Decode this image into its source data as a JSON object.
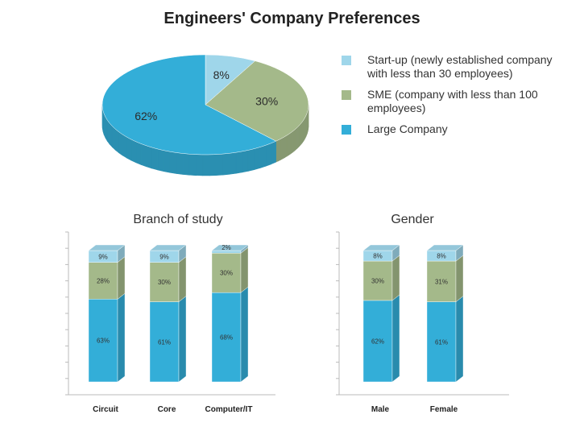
{
  "title": "Engineers' Company Preferences",
  "colors": {
    "startup": "#9fd6ea",
    "sme": "#a4b98a",
    "large": "#33aed8"
  },
  "legend": [
    {
      "key": "startup",
      "label": "Start-up (newly established company with less than 30 employees)"
    },
    {
      "key": "sme",
      "label": "SME (company with less than 100 employees)"
    },
    {
      "key": "large",
      "label": "Large Company"
    }
  ],
  "chart_data": [
    {
      "type": "pie",
      "title": "",
      "slices": [
        {
          "key": "startup",
          "value": 8,
          "label": "8%"
        },
        {
          "key": "sme",
          "value": 30,
          "label": "30%"
        },
        {
          "key": "large",
          "value": 62,
          "label": "62%"
        }
      ]
    },
    {
      "type": "bar",
      "stacked": true,
      "title": "Branch of study",
      "categories": [
        "Circuit",
        "Core",
        "Computer/IT"
      ],
      "series": [
        {
          "key": "large",
          "values": [
            63,
            61,
            68
          ],
          "labels": [
            "63%",
            "61%",
            "68%"
          ]
        },
        {
          "key": "sme",
          "values": [
            28,
            30,
            30
          ],
          "labels": [
            "28%",
            "30%",
            "30%"
          ]
        },
        {
          "key": "startup",
          "values": [
            9,
            9,
            2
          ],
          "labels": [
            "9%",
            "9%",
            "2%"
          ]
        }
      ],
      "ylim": [
        0,
        100
      ]
    },
    {
      "type": "bar",
      "stacked": true,
      "title": "Gender",
      "categories": [
        "Male",
        "Female"
      ],
      "series": [
        {
          "key": "large",
          "values": [
            62,
            61
          ],
          "labels": [
            "62%",
            "61%"
          ]
        },
        {
          "key": "sme",
          "values": [
            30,
            31
          ],
          "labels": [
            "30%",
            "31%"
          ]
        },
        {
          "key": "startup",
          "values": [
            8,
            8
          ],
          "labels": [
            "8%",
            "8%"
          ]
        }
      ],
      "ylim": [
        0,
        100
      ]
    }
  ]
}
